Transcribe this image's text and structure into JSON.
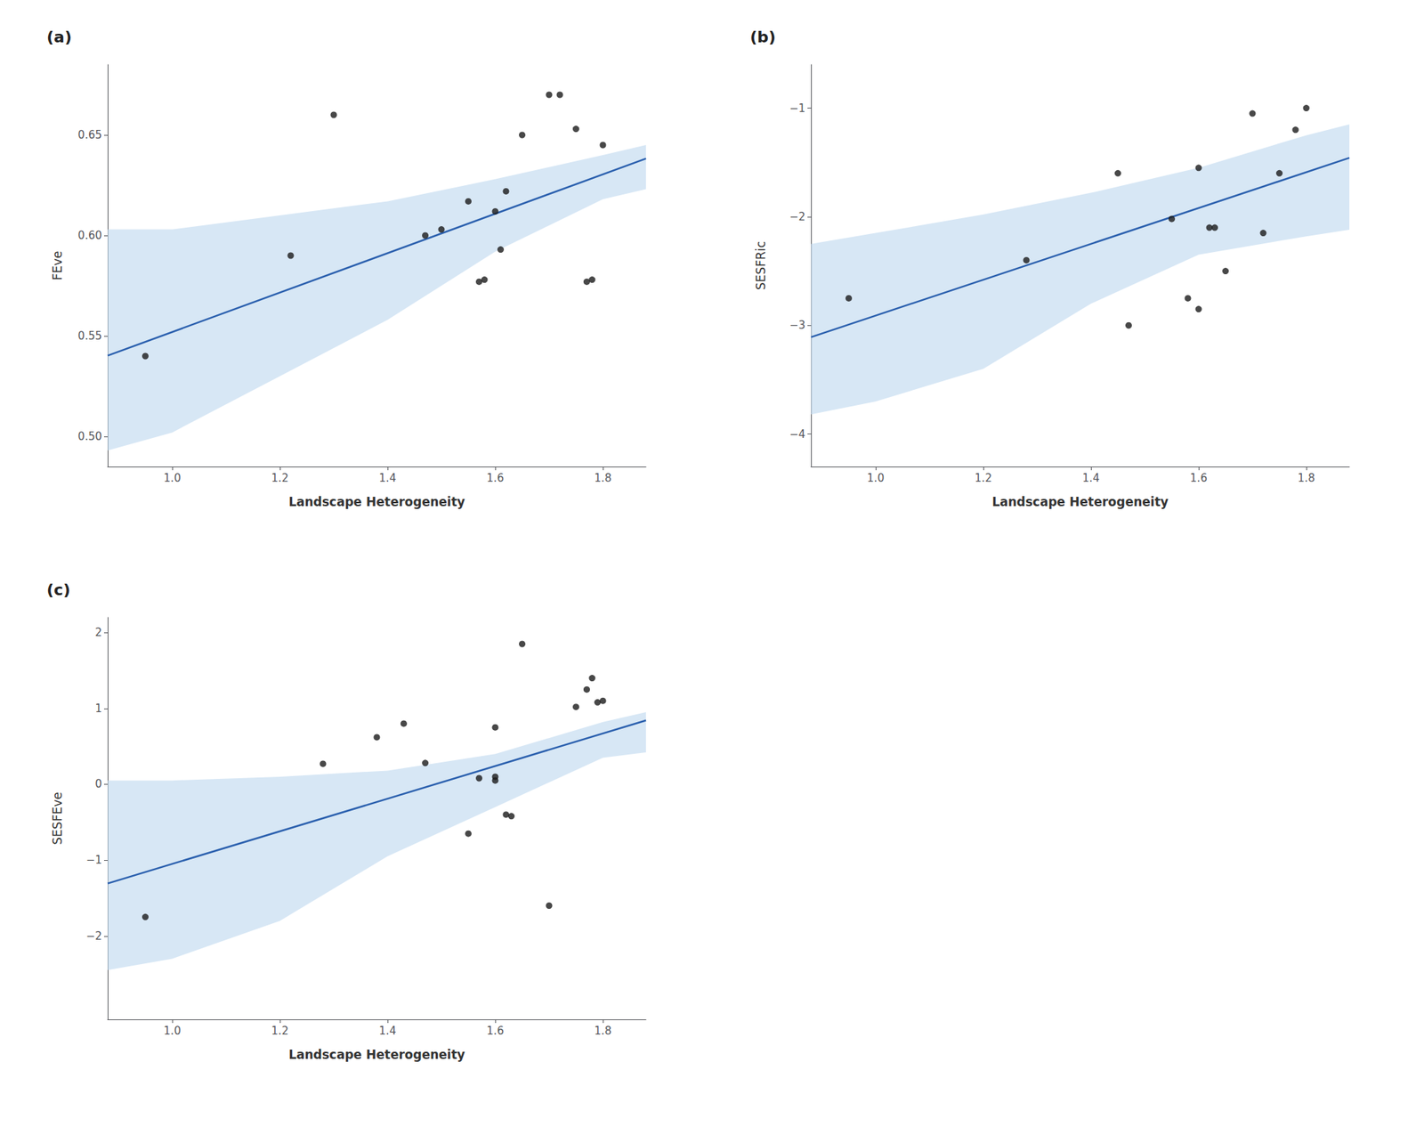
{
  "chart_data": [
    {
      "type": "scatter",
      "title": "(a)",
      "xlabel": "Landscape Heterogeneity",
      "ylabel": "FEve",
      "xlim": [
        0.88,
        1.88
      ],
      "ylim": [
        0.485,
        0.685
      ],
      "xticks": [
        {
          "value": 1.0,
          "label": "1.0"
        },
        1.2,
        1.4,
        1.6,
        1.8
      ],
      "yticks": [
        {
          "value": 0.5,
          "label": "0.50"
        },
        0.55,
        {
          "value": 0.6,
          "label": "0.60"
        },
        0.65
      ],
      "grid": false,
      "color": "#1a1a1a",
      "x": [
        0.95,
        1.22,
        1.3,
        1.47,
        1.5,
        1.55,
        1.57,
        1.58,
        1.6,
        1.61,
        1.62,
        1.65,
        1.7,
        1.72,
        1.75,
        1.77,
        1.78,
        1.8
      ],
      "y": [
        0.54,
        0.59,
        0.66,
        0.6,
        0.603,
        0.617,
        0.577,
        0.578,
        0.612,
        0.593,
        0.622,
        0.65,
        0.67,
        0.67,
        0.653,
        0.577,
        0.578,
        0.645
      ],
      "fit_line": {
        "x": [
          0.88,
          1.88
        ],
        "y": [
          0.54024,
          0.63824
        ],
        "color": "#2B60AE"
      },
      "ci_band": {
        "x": [
          0.88,
          1.0,
          1.2,
          1.4,
          1.6,
          1.8,
          1.88
        ],
        "upper": [
          0.603,
          0.603,
          0.61,
          0.617,
          0.628,
          0.64,
          0.645
        ],
        "lower": [
          0.493,
          0.502,
          0.53,
          0.558,
          0.592,
          0.618,
          0.623
        ],
        "color": "#BDD7EE"
      }
    },
    {
      "type": "scatter",
      "title": "(b)",
      "xlabel": "Landscape Heterogeneity",
      "ylabel": "SESFRic",
      "xlim": [
        0.88,
        1.88
      ],
      "ylim": [
        -4.3,
        -0.6
      ],
      "xticks": [
        {
          "value": 1.0,
          "label": "1.0"
        },
        1.2,
        1.4,
        1.6,
        1.8
      ],
      "yticks": [
        {
          "value": -4,
          "label": "−4"
        },
        {
          "value": -3,
          "label": "−3"
        },
        {
          "value": -2,
          "label": "−2"
        },
        {
          "value": -1,
          "label": "−1"
        }
      ],
      "grid": false,
      "color": "#1a1a1a",
      "x": [
        0.95,
        1.28,
        1.45,
        1.47,
        1.55,
        1.58,
        1.6,
        1.6,
        1.62,
        1.63,
        1.65,
        1.7,
        1.72,
        1.75,
        1.78,
        1.8
      ],
      "y": [
        -2.75,
        -2.4,
        -1.6,
        -3.0,
        -2.02,
        -2.75,
        -1.55,
        -2.85,
        -2.1,
        -2.1,
        -2.5,
        -1.05,
        -2.15,
        -1.6,
        -1.2,
        -1.0
      ],
      "fit_line": {
        "x": [
          0.88,
          1.88
        ],
        "y": [
          -3.108,
          -1.458
        ],
        "color": "#2B60AE"
      },
      "ci_band": {
        "x": [
          0.88,
          1.0,
          1.2,
          1.4,
          1.6,
          1.8,
          1.88
        ],
        "upper": [
          -2.25,
          -2.15,
          -1.98,
          -1.78,
          -1.55,
          -1.25,
          -1.15
        ],
        "lower": [
          -3.82,
          -3.7,
          -3.4,
          -2.8,
          -2.35,
          -2.18,
          -2.12
        ],
        "color": "#BDD7EE"
      }
    },
    {
      "type": "scatter",
      "title": "(c)",
      "xlabel": "Landscape Heterogeneity",
      "ylabel": "SESFEve",
      "xlim": [
        0.88,
        1.88
      ],
      "ylim": [
        -3.1,
        2.2
      ],
      "xticks": [
        {
          "value": 1.0,
          "label": "1.0"
        },
        1.2,
        1.4,
        1.6,
        1.8
      ],
      "yticks": [
        {
          "value": -2,
          "label": "−2"
        },
        {
          "value": -1,
          "label": "−1"
        },
        0,
        1,
        2
      ],
      "grid": false,
      "color": "#1a1a1a",
      "x": [
        0.95,
        1.28,
        1.38,
        1.43,
        1.47,
        1.55,
        1.57,
        1.6,
        1.6,
        1.6,
        1.62,
        1.63,
        1.65,
        1.7,
        1.75,
        1.77,
        1.78,
        1.79,
        1.8
      ],
      "y": [
        -1.75,
        0.27,
        0.62,
        0.8,
        0.28,
        -0.65,
        0.08,
        0.75,
        0.1,
        0.05,
        -0.4,
        -0.42,
        1.85,
        -1.6,
        1.02,
        1.25,
        1.4,
        1.08,
        1.1
      ],
      "fit_line": {
        "x": [
          0.88,
          1.88
        ],
        "y": [
          -1.308,
          0.842
        ],
        "color": "#2B60AE"
      },
      "ci_band": {
        "x": [
          0.88,
          1.0,
          1.2,
          1.4,
          1.6,
          1.8,
          1.88
        ],
        "upper": [
          0.05,
          0.05,
          0.1,
          0.18,
          0.4,
          0.82,
          0.95
        ],
        "lower": [
          -2.45,
          -2.3,
          -1.8,
          -0.95,
          -0.3,
          0.35,
          0.42
        ],
        "color": "#BDD7EE"
      }
    }
  ]
}
